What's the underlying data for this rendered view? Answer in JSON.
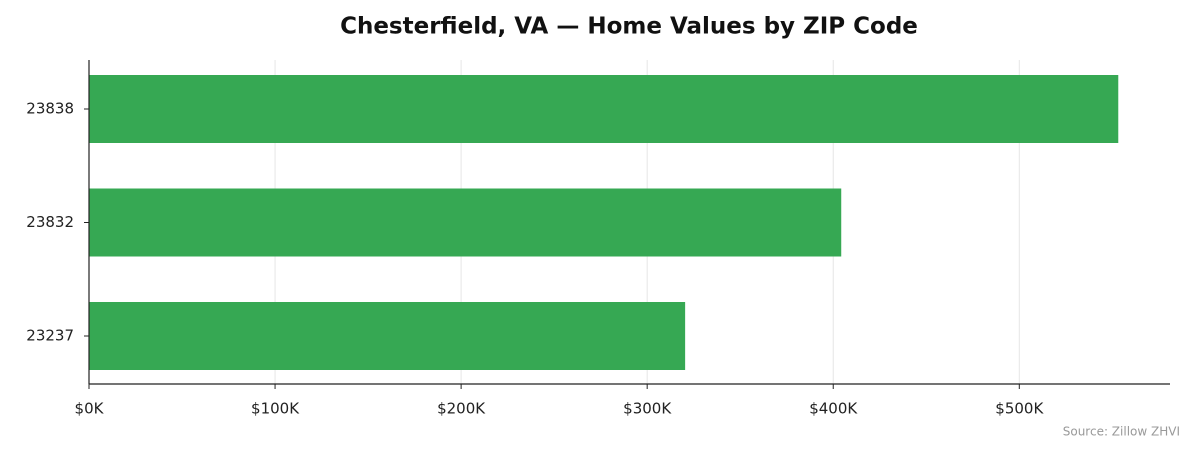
{
  "chart_data": {
    "type": "barh",
    "title": "Chesterfield, VA — Home Values by ZIP Code",
    "categories": [
      "23838",
      "23832",
      "23237"
    ],
    "values": [
      553200,
      404300,
      320400
    ],
    "color": "#36a853",
    "xlim": [
      0,
      581000
    ],
    "xticks": [
      {
        "value": 0,
        "label": "$0K"
      },
      {
        "value": 100000,
        "label": "$100K"
      },
      {
        "value": 200000,
        "label": "$200K"
      },
      {
        "value": 300000,
        "label": "$300K"
      },
      {
        "value": 400000,
        "label": "$400K"
      },
      {
        "value": 500000,
        "label": "$500K"
      }
    ],
    "grid": true,
    "source": "Source: Zillow ZHVI"
  }
}
